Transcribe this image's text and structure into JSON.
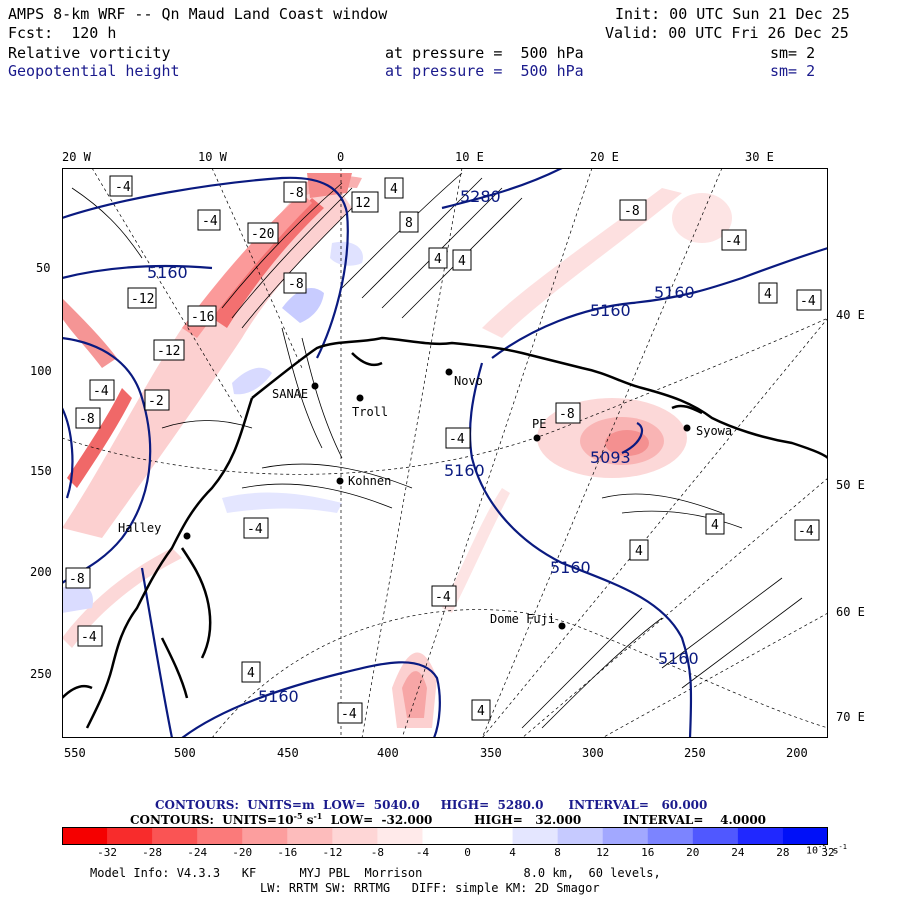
{
  "header": {
    "line1_left": "AMPS 8-km WRF -- Qn Maud Land Coast window",
    "line1_right": "Init: 00 UTC Sun 21 Dec 25",
    "line2_left": "Fcst:  120 h",
    "line2_right": "Valid: 00 UTC Fri 26 Dec 25",
    "field1_name": "Relative vorticity",
    "field1_pressure": "at pressure =  500 hPa",
    "field1_sm": "sm= 2",
    "field2_name": "Geopotential height",
    "field2_pressure": "at pressure =  500 hPa",
    "field2_sm": "sm= 2"
  },
  "map": {
    "top_lon_labels": [
      "20 W",
      "10 W",
      "0",
      "10 E",
      "20 E",
      "30 E"
    ],
    "left_y_labels": [
      "50",
      "100",
      "150",
      "200",
      "250"
    ],
    "bottom_x_labels": [
      "550",
      "500",
      "450",
      "400",
      "350",
      "300",
      "250",
      "200"
    ],
    "right_lat_labels": [
      "40 E",
      "50 E",
      "60 E",
      "70 E"
    ],
    "stations": [
      "Troll",
      "Kohnen",
      "Halley",
      "Dome Fuji",
      "Syowa",
      "Novo",
      "PE",
      "SANAE"
    ],
    "height_contour_labels": [
      "5280",
      "5160",
      "5160",
      "5160",
      "5160",
      "5160",
      "5160",
      "5160",
      "5093"
    ],
    "vorticity_box_labels": [
      "-4",
      "-8",
      "-12",
      "-20",
      "-16",
      "-8",
      "4",
      "8",
      "12",
      "-4",
      "-8",
      "4",
      "-4",
      "4",
      "4",
      "-4",
      "-8",
      "-4",
      "4",
      "-4",
      "-4",
      "4",
      "-8",
      "-12",
      "-2",
      "-4",
      "-8",
      "-4",
      "4",
      "-4",
      "-4",
      "4"
    ],
    "colors": {
      "height_contour": "#0a1a80",
      "coast": "#000000",
      "neg_strong": "#f01010",
      "neg_weak": "#fcd0d0",
      "pos_weak": "#d0d4ff",
      "pos_strong": "#1010ff"
    }
  },
  "footer": {
    "line1_contours": "CONTOURS:  UNITS=m  LOW=  5040.0     HIGH=  5280.0      INTERVAL=   60.000",
    "line2_contours": "CONTOURS:  UNITS=10",
    "line2_exp": "-5",
    "line2_rest": " s",
    "line2_exp2": "-1",
    "line2_tail": "  LOW=  -32.000          HIGH=   32.000          INTERVAL=    4.0000",
    "model_info": "Model Info: V4.3.3   KF      MYJ PBL  Morrison              8.0 km,  60 levels,",
    "model_info2": "LW: RRTM SW: RRTMG   DIFF: simple KM: 2D Smagor"
  },
  "colorbar": {
    "colors": [
      "#f50000",
      "#f82c2c",
      "#fa5454",
      "#fb7a7a",
      "#fc9e9e",
      "#fdbcbc",
      "#fed6d6",
      "#ffeaea",
      "#ffffff",
      "#ffffff",
      "#e4e6ff",
      "#c6caff",
      "#a2a8ff",
      "#7c84ff",
      "#5058ff",
      "#2028ff",
      "#0010f8"
    ],
    "labels": [
      "-32",
      "-28",
      "-24",
      "-20",
      "-16",
      "-12",
      "-8",
      "-4",
      "0",
      "4",
      "8",
      "12",
      "16",
      "20",
      "24",
      "28",
      "32"
    ],
    "unit": "10",
    "unit_exp": "-5",
    "unit_s": " s",
    "unit_exp2": "-1"
  }
}
